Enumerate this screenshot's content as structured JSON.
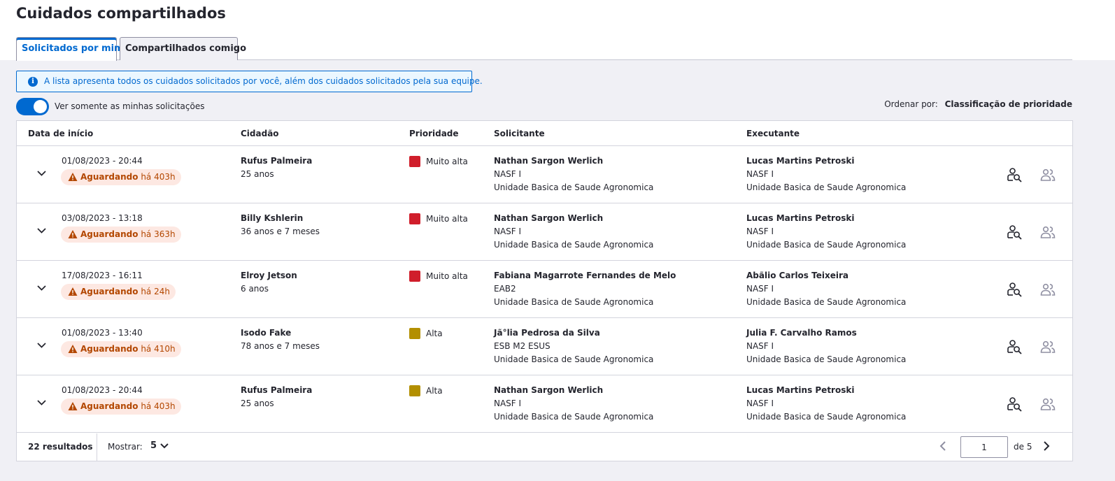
{
  "page": {
    "title": "Cuidados compartilhados"
  },
  "tabs": [
    {
      "label": "Solicitados por mim",
      "active": true
    },
    {
      "label": "Compartilhados comigo",
      "active": false
    }
  ],
  "alert": {
    "icon": "info-icon",
    "text": "A lista apresenta todos os cuidados solicitados por você, além dos cuidados solicitados pela sua equipe."
  },
  "filter": {
    "toggle_label": "Ver somente as minhas solicitações",
    "toggle_on": true
  },
  "sort": {
    "label": "Ordenar por:",
    "value": "Classificação de prioridade"
  },
  "table": {
    "headers": {
      "data": "Data de início",
      "cidadao": "Cidadão",
      "prioridade": "Prioridade",
      "solicitante": "Solicitante",
      "executante": "Executante"
    },
    "rows": [
      {
        "date": "01/08/2023 - 20:44",
        "status": "Aguardando",
        "wait": "há 403h",
        "citizen": "Rufus Palmeira",
        "age": "25 anos",
        "priority": "Muito alta",
        "priority_color": "#d01e2b",
        "req_name": "Nathan Sargon Werlich",
        "req_team": "NASF I",
        "req_unit": "Unidade Basica de Saude Agronomica",
        "exe_name": "Lucas Martins Petroski",
        "exe_team": "NASF I",
        "exe_unit": "Unidade Basica de Saude Agronomica",
        "badge_bg": "#fde8e2"
      },
      {
        "date": "03/08/2023 - 13:18",
        "status": "Aguardando",
        "wait": "há 363h",
        "citizen": "Billy Kshlerin",
        "age": "36 anos e 7 meses",
        "priority": "Muito alta",
        "priority_color": "#d01e2b",
        "req_name": "Nathan Sargon Werlich",
        "req_team": "NASF I",
        "req_unit": "Unidade Basica de Saude Agronomica",
        "exe_name": "Lucas Martins Petroski",
        "exe_team": "NASF I",
        "exe_unit": "Unidade Basica de Saude Agronomica",
        "badge_bg": "#fde8e2"
      },
      {
        "date": "17/08/2023 - 16:11",
        "status": "Aguardando",
        "wait": "há 24h",
        "citizen": "Elroy Jetson",
        "age": "6 anos",
        "priority": "Muito alta",
        "priority_color": "#d01e2b",
        "req_name": "Fabiana Magarrote Fernandes de Melo",
        "req_team": "EAB2",
        "req_unit": "Unidade Basica de Saude Agronomica",
        "exe_name": "Abãlio Carlos Teixeira",
        "exe_team": "NASF I",
        "exe_unit": "Unidade Basica de Saude Agronomica",
        "badge_bg": "#fde8e2"
      },
      {
        "date": "01/08/2023 - 13:40",
        "status": "Aguardando",
        "wait": "há 410h",
        "citizen": "Isodo Fake",
        "age": "78 anos e 7 meses",
        "priority": "Alta",
        "priority_color": "#b38f00",
        "req_name": "Jã°lia Pedrosa da Silva",
        "req_team": "ESB M2 ESUS",
        "req_unit": "Unidade Basica de Saude Agronomica",
        "exe_name": "Julia F. Carvalho Ramos",
        "exe_team": "NASF I",
        "exe_unit": "Unidade Basica de Saude Agronomica",
        "badge_bg": "#fde8e2"
      },
      {
        "date": "01/08/2023 - 20:44",
        "status": "Aguardando",
        "wait": "há 403h",
        "citizen": "Rufus Palmeira",
        "age": "25 anos",
        "priority": "Alta",
        "priority_color": "#b38f00",
        "req_name": "Nathan Sargon Werlich",
        "req_team": "NASF I",
        "req_unit": "Unidade Basica de Saude Agronomica",
        "exe_name": "Lucas Martins Petroski",
        "exe_team": "NASF I",
        "exe_unit": "Unidade Basica de Saude Agronomica",
        "badge_bg": "#fde8e2"
      }
    ],
    "row_actions": {
      "view_icon": "person-search-icon",
      "share_icon": "people-icon"
    }
  },
  "footer": {
    "results": "22 resultados",
    "show_label": "Mostrar:",
    "show_value": "5",
    "page_value": "1",
    "of_label": "de 5"
  },
  "colors": {
    "primary": "#0069d0",
    "very_high": "#d01e2b",
    "high": "#b38f00",
    "waiting_text": "#b34700",
    "waiting_bg": "#fde8e2"
  }
}
